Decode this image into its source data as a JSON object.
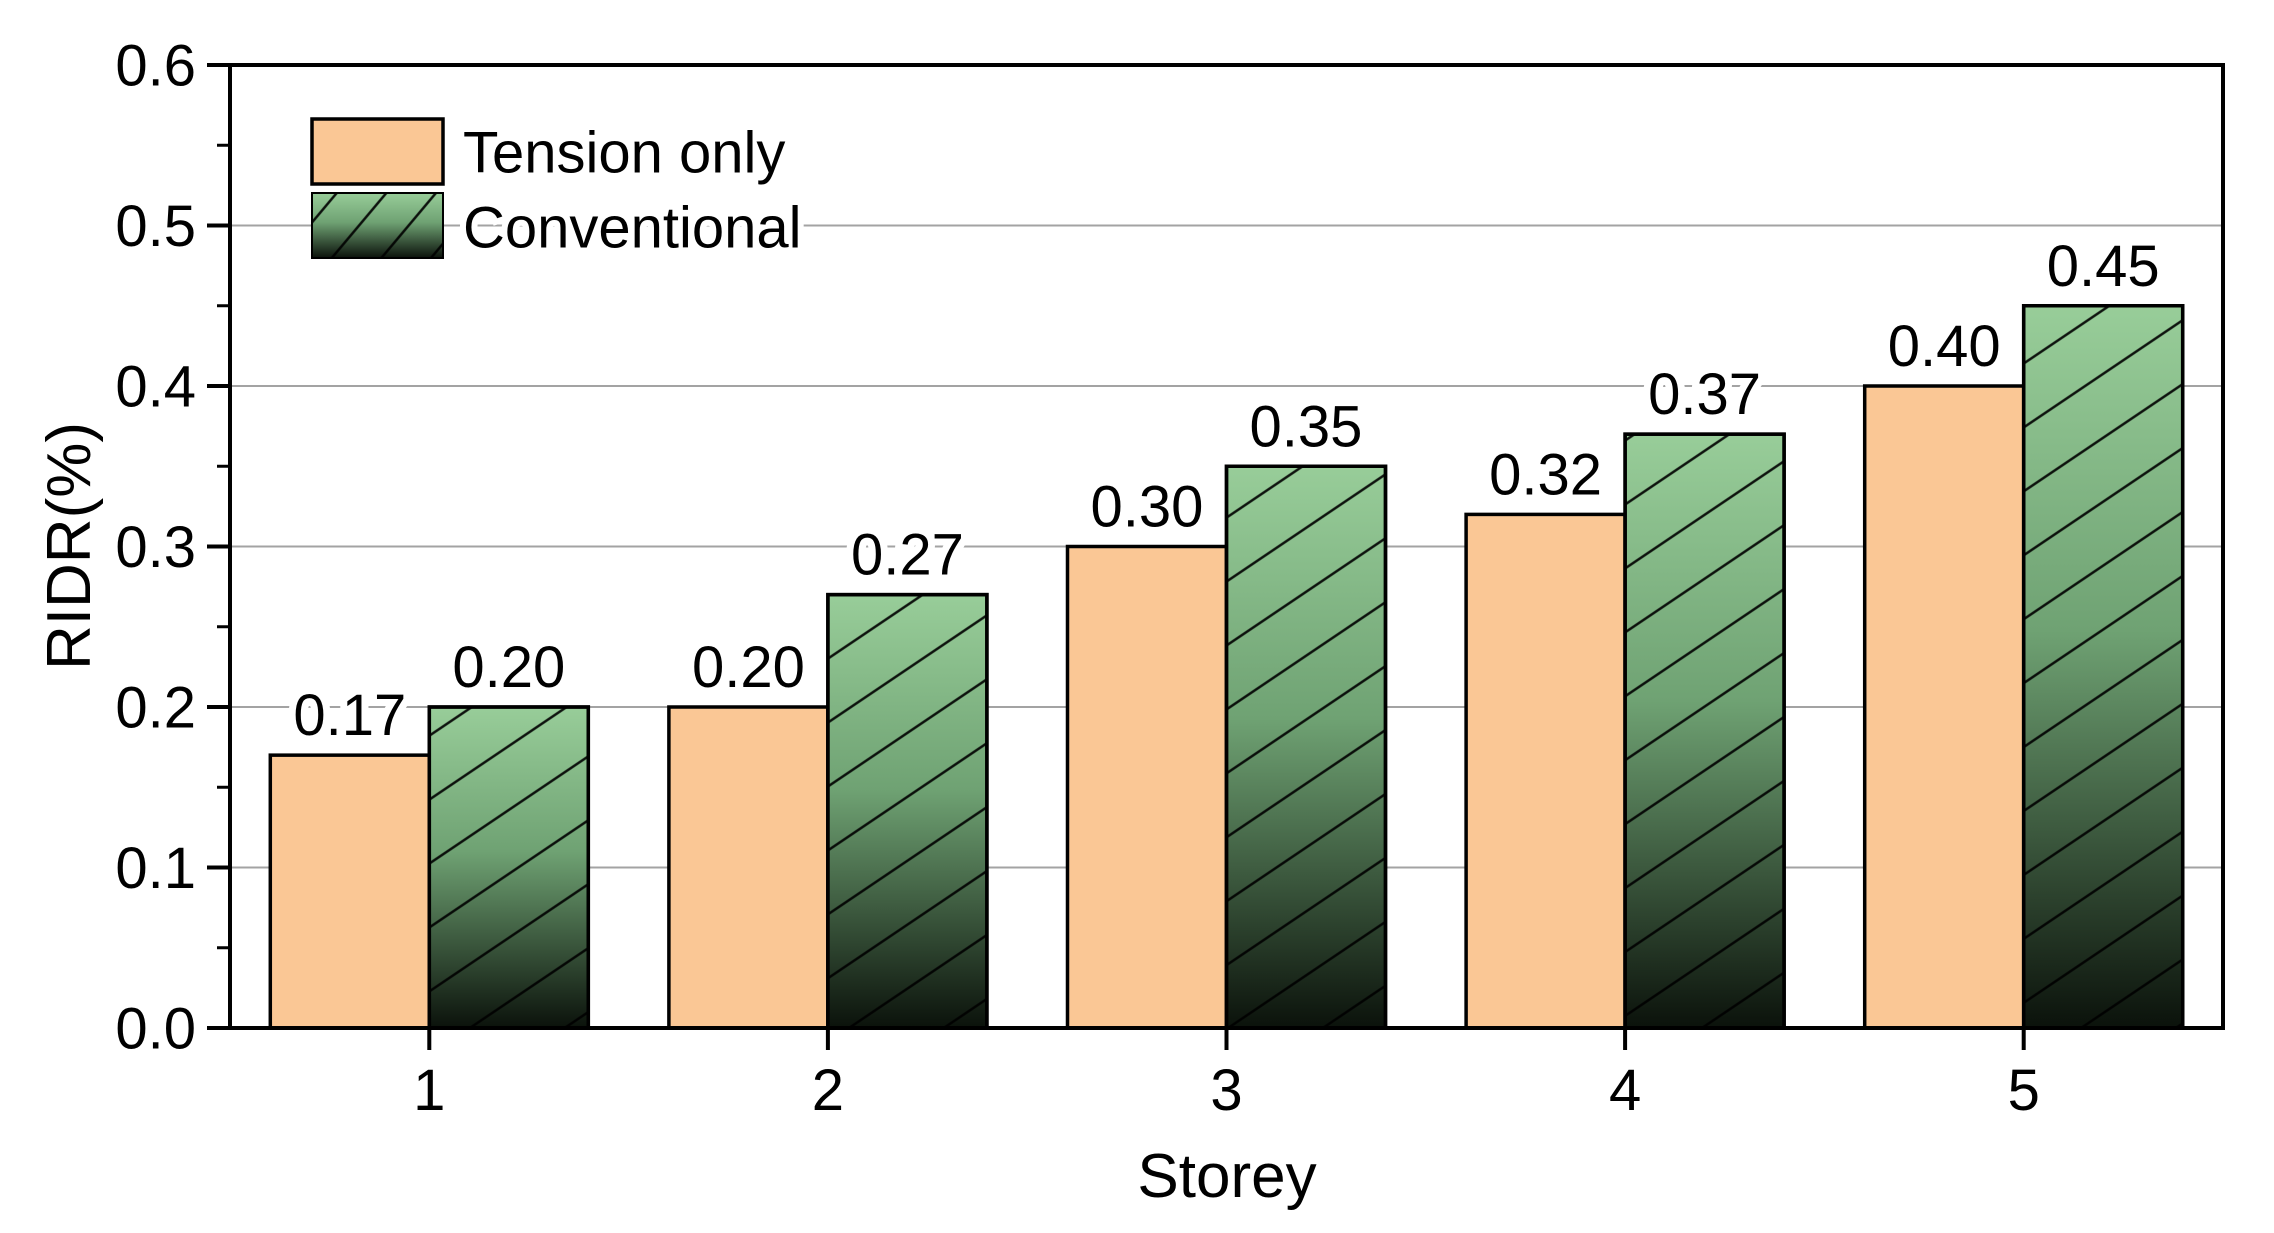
{
  "chart_data": {
    "type": "bar",
    "title": "",
    "categories": [
      "1",
      "2",
      "3",
      "4",
      "5"
    ],
    "series": [
      {
        "name": "Tension only",
        "values": [
          0.17,
          0.2,
          0.3,
          0.32,
          0.4
        ],
        "value_labels": [
          "0.17",
          "0.20",
          "0.30",
          "0.32",
          "0.40"
        ],
        "color": "#FAC795",
        "outline": "#000000",
        "style": "solid"
      },
      {
        "name": "Conventional",
        "values": [
          0.2,
          0.27,
          0.35,
          0.37,
          0.45
        ],
        "value_labels": [
          "0.20",
          "0.27",
          "0.35",
          "0.37",
          "0.45"
        ],
        "gradient_top": "#98CD99",
        "gradient_mid": "#6FA273",
        "gradient_bottom": "#0B120B",
        "outline": "#000000",
        "style": "gradient-hatched",
        "hatch": "forward-diagonal"
      }
    ],
    "xlabel": "Storey",
    "ylabel": "RIDR(%)",
    "ylim": [
      0,
      0.6
    ],
    "ytick_step": 0.1,
    "yminor_step": 0.05,
    "yticklabels": [
      "0.0",
      "0.1",
      "0.2",
      "0.3",
      "0.4",
      "0.5",
      "0.6"
    ],
    "grid": "horizontal-major",
    "gridline_color": "#A3A3A3",
    "legend_position": "top-left-inside",
    "frame": "full-box"
  }
}
